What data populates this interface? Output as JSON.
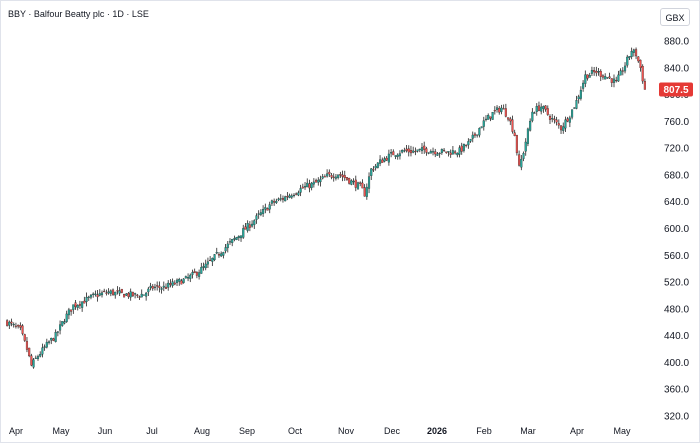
{
  "header": {
    "title": "BBY · Balfour Beatty plc · 1D · LSE",
    "currency": "GBX"
  },
  "chart_data": {
    "type": "candlestick",
    "title": "BBY · Balfour Beatty plc · 1D · LSE",
    "ylim": [
      320,
      900
    ],
    "y_ticks": [
      "880.0",
      "840.0",
      "800.0",
      "760.0",
      "720.0",
      "680.0",
      "640.0",
      "600.0",
      "560.0",
      "520.0",
      "480.0",
      "440.0",
      "400.0",
      "360.0",
      "320.0"
    ],
    "x_ticks": [
      {
        "label": "Apr",
        "bold": false
      },
      {
        "label": "May",
        "bold": false
      },
      {
        "label": "Jun",
        "bold": false
      },
      {
        "label": "Jul",
        "bold": false
      },
      {
        "label": "Aug",
        "bold": false
      },
      {
        "label": "Sep",
        "bold": false
      },
      {
        "label": "Oct",
        "bold": false
      },
      {
        "label": "Nov",
        "bold": false
      },
      {
        "label": "Dec",
        "bold": false
      },
      {
        "label": "2026",
        "bold": true
      },
      {
        "label": "Feb",
        "bold": false
      },
      {
        "label": "Mar",
        "bold": false
      },
      {
        "label": "Apr",
        "bold": false
      },
      {
        "label": "May",
        "bold": false
      }
    ],
    "last_price": "807.5",
    "colors": {
      "up": "#26a69a",
      "down": "#ef5350",
      "last_price_bg": "#e53935"
    },
    "grid": false,
    "anchors": [
      [
        0,
        460
      ],
      [
        6,
        448
      ],
      [
        9,
        420
      ],
      [
        11,
        395
      ],
      [
        14,
        410
      ],
      [
        19,
        430
      ],
      [
        22,
        440
      ],
      [
        26,
        465
      ],
      [
        30,
        485
      ],
      [
        35,
        492
      ],
      [
        40,
        500
      ],
      [
        46,
        505
      ],
      [
        52,
        502
      ],
      [
        58,
        500
      ],
      [
        62,
        502
      ],
      [
        66,
        512
      ],
      [
        71,
        512
      ],
      [
        76,
        518
      ],
      [
        81,
        524
      ],
      [
        85,
        532
      ],
      [
        90,
        544
      ],
      [
        95,
        560
      ],
      [
        100,
        575
      ],
      [
        105,
        590
      ],
      [
        110,
        606
      ],
      [
        115,
        622
      ],
      [
        120,
        638
      ],
      [
        125,
        645
      ],
      [
        130,
        654
      ],
      [
        135,
        662
      ],
      [
        140,
        668
      ],
      [
        145,
        678
      ],
      [
        150,
        682
      ],
      [
        155,
        672
      ],
      [
        160,
        662
      ],
      [
        162,
        652
      ],
      [
        165,
        688
      ],
      [
        170,
        702
      ],
      [
        175,
        712
      ],
      [
        180,
        716
      ],
      [
        185,
        715
      ],
      [
        190,
        718
      ],
      [
        195,
        715
      ],
      [
        200,
        714
      ],
      [
        205,
        716
      ],
      [
        210,
        730
      ],
      [
        215,
        755
      ],
      [
        220,
        772
      ],
      [
        224,
        780
      ],
      [
        227,
        768
      ],
      [
        230,
        740
      ],
      [
        232,
        690
      ],
      [
        234,
        715
      ],
      [
        238,
        775
      ],
      [
        242,
        782
      ],
      [
        247,
        763
      ],
      [
        251,
        750
      ],
      [
        255,
        770
      ],
      [
        258,
        790
      ],
      [
        262,
        828
      ],
      [
        267,
        834
      ],
      [
        272,
        826
      ],
      [
        276,
        818
      ],
      [
        280,
        844
      ],
      [
        283,
        866
      ],
      [
        285,
        860
      ],
      [
        287,
        840
      ],
      [
        289,
        807.5
      ]
    ]
  }
}
